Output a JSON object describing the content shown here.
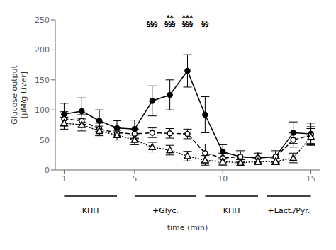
{
  "chart_data": {
    "type": "line",
    "ylabel": "Glucose output\n[μM/g Liver]",
    "xlabel": "time (min)",
    "x": [
      1,
      2,
      3,
      4,
      5,
      6,
      7,
      8,
      9,
      10,
      11,
      12,
      13,
      14,
      15
    ],
    "series": [
      {
        "color": "#000000",
        "marker": "circle",
        "line_style": "solid",
        "values": [
          93,
          98,
          82,
          70,
          68,
          115,
          125,
          165,
          92,
          30,
          22,
          20,
          22,
          62,
          60
        ],
        "errors": [
          18,
          22,
          18,
          12,
          15,
          25,
          25,
          27,
          30,
          12,
          10,
          10,
          10,
          18,
          18
        ]
      },
      {
        "color": "#000000",
        "marker": "circle_open",
        "line_style": "dashed",
        "values": [
          85,
          82,
          68,
          62,
          60,
          62,
          61,
          60,
          28,
          20,
          22,
          20,
          22,
          50,
          58
        ],
        "errors": [
          12,
          10,
          10,
          8,
          8,
          8,
          8,
          8,
          15,
          8,
          8,
          8,
          8,
          12,
          14
        ]
      },
      {
        "color": "#000000",
        "marker": "triangle_open",
        "line_style": "dotted",
        "values": [
          78,
          75,
          65,
          58,
          50,
          38,
          33,
          23,
          16,
          14,
          12,
          14,
          14,
          20,
          55
        ],
        "errors": [
          10,
          10,
          8,
          8,
          8,
          8,
          8,
          8,
          8,
          6,
          5,
          5,
          5,
          8,
          14
        ]
      }
    ],
    "xlim": [
      0.5,
      15.5
    ],
    "ylim": [
      0,
      250
    ],
    "xticks": [
      1,
      5,
      10,
      15
    ],
    "yticks": [
      0,
      50,
      100,
      150,
      200,
      250
    ],
    "grid": false,
    "annotations": [
      {
        "text": "**",
        "x": 7,
        "y": 246
      },
      {
        "text": "***",
        "x": 8,
        "y": 246
      },
      {
        "text": "§§§",
        "x": 6,
        "y": 237
      },
      {
        "text": "§§§",
        "x": 7,
        "y": 237
      },
      {
        "text": "§§§",
        "x": 8,
        "y": 237
      },
      {
        "text": "§§",
        "x": 9,
        "y": 237
      }
    ],
    "segments": [
      {
        "label": "KHH",
        "xmin": 1,
        "xmax": 4,
        "label_x": 2.5
      },
      {
        "label": "+Glyc.",
        "xmin": 5,
        "xmax": 8.5,
        "label_x": 6.75
      },
      {
        "label": "KHH",
        "xmin": 9,
        "xmax": 12,
        "label_x": 10.5
      },
      {
        "label": "+Lact./Pyr.",
        "xmin": 12.5,
        "xmax": 15,
        "label_x": 13.75
      }
    ]
  }
}
